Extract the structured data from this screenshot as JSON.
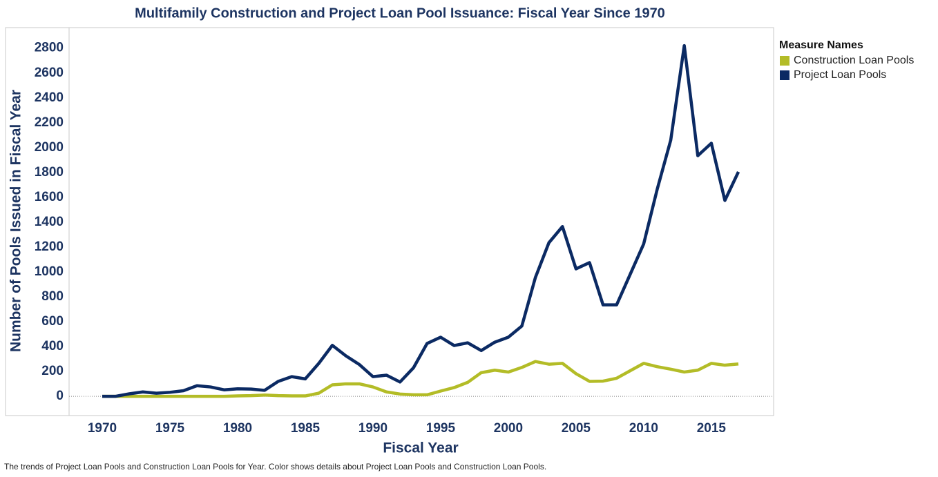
{
  "chart_data": {
    "type": "line",
    "title": "Multifamily Construction and Project Loan Pool Issuance: Fiscal Year Since 1970",
    "x_label": "Fiscal Year",
    "y_label": "Number of Pools Issued in Fiscal Year",
    "caption": "The trends of Project Loan Pools and Construction Loan Pools for Year. Color shows details about Project Loan Pools and Construction Loan Pools.",
    "legend_title": "Measure Names",
    "legend": "right",
    "zero_line": true,
    "x": [
      1970,
      1971,
      1972,
      1973,
      1974,
      1975,
      1976,
      1977,
      1978,
      1979,
      1980,
      1981,
      1982,
      1983,
      1984,
      1985,
      1986,
      1987,
      1988,
      1989,
      1990,
      1991,
      1992,
      1993,
      1994,
      1995,
      1996,
      1997,
      1998,
      1999,
      2000,
      2001,
      2002,
      2003,
      2004,
      2005,
      2006,
      2007,
      2008,
      2009,
      2010,
      2011,
      2012,
      2013,
      2014,
      2015,
      2016,
      2017
    ],
    "series": [
      {
        "name": "Construction Loan Pools",
        "color": "#b3bc27",
        "values": [
          0,
          0,
          0,
          0,
          0,
          0,
          0,
          0,
          0,
          0,
          3,
          5,
          10,
          5,
          3,
          3,
          25,
          92,
          100,
          100,
          75,
          35,
          18,
          12,
          12,
          42,
          70,
          112,
          190,
          210,
          195,
          232,
          280,
          258,
          265,
          182,
          120,
          122,
          145,
          205,
          265,
          238,
          218,
          195,
          210,
          265,
          250,
          260
        ]
      },
      {
        "name": "Project Loan Pools",
        "color": "#0b2a63",
        "values": [
          0,
          0,
          20,
          35,
          25,
          32,
          45,
          85,
          75,
          52,
          60,
          58,
          48,
          120,
          158,
          140,
          265,
          410,
          325,
          255,
          158,
          170,
          115,
          230,
          425,
          475,
          408,
          430,
          368,
          435,
          475,
          565,
          955,
          1235,
          1365,
          1025,
          1075,
          735,
          735,
          980,
          1225,
          1665,
          2060,
          2820,
          1935,
          2035,
          1575,
          1805
        ]
      }
    ],
    "xlim": [
      1967.55,
      2019.6
    ],
    "xticks": [
      1970,
      1975,
      1980,
      1985,
      1990,
      1995,
      2000,
      2005,
      2010,
      2015
    ],
    "ylim": [
      -155,
      2965
    ],
    "yticks": [
      0,
      200,
      400,
      600,
      800,
      1000,
      1200,
      1400,
      1600,
      1800,
      2000,
      2200,
      2400,
      2600,
      2800
    ]
  }
}
